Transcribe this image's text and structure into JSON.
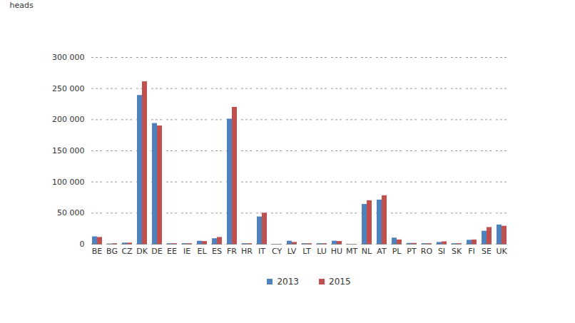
{
  "chart_data": {
    "type": "bar",
    "y_label": "heads",
    "categories": [
      "BE",
      "BG",
      "CZ",
      "DK",
      "DE",
      "EE",
      "IE",
      "EL",
      "ES",
      "FR",
      "HR",
      "IT",
      "CY",
      "LV",
      "LT",
      "LU",
      "HU",
      "MT",
      "NL",
      "AT",
      "PL",
      "PT",
      "RO",
      "SI",
      "SK",
      "FI",
      "SE",
      "UK"
    ],
    "series": [
      {
        "name": "2013",
        "color": "#4f81bd",
        "values": [
          12000,
          500,
          2000,
          239000,
          194000,
          1000,
          1000,
          5000,
          9000,
          201000,
          1000,
          44000,
          0,
          5000,
          1000,
          1000,
          5000,
          0,
          64000,
          71000,
          10000,
          1500,
          1000,
          3000,
          1000,
          6500,
          21000,
          31000
        ]
      },
      {
        "name": "2015",
        "color": "#c0504d",
        "values": [
          11000,
          1000,
          2000,
          261000,
          190000,
          1000,
          1000,
          4500,
          11000,
          220000,
          1000,
          50000,
          0,
          3000,
          1000,
          1000,
          4500,
          0,
          70000,
          78000,
          7000,
          1500,
          1000,
          4000,
          1000,
          7000,
          27000,
          29000
        ]
      }
    ],
    "ylim": [
      0,
      300000
    ],
    "yticks": [
      0,
      {
        "value": 50000,
        "label": "50 000"
      },
      {
        "value": 100000,
        "label": "100 000"
      },
      {
        "value": 150000,
        "label": "150 000"
      },
      {
        "value": 200000,
        "label": "200 000"
      },
      {
        "value": 250000,
        "label": "250 000"
      },
      {
        "value": 300000,
        "label": "300 000"
      }
    ],
    "grid": true,
    "legend": "bottom"
  }
}
